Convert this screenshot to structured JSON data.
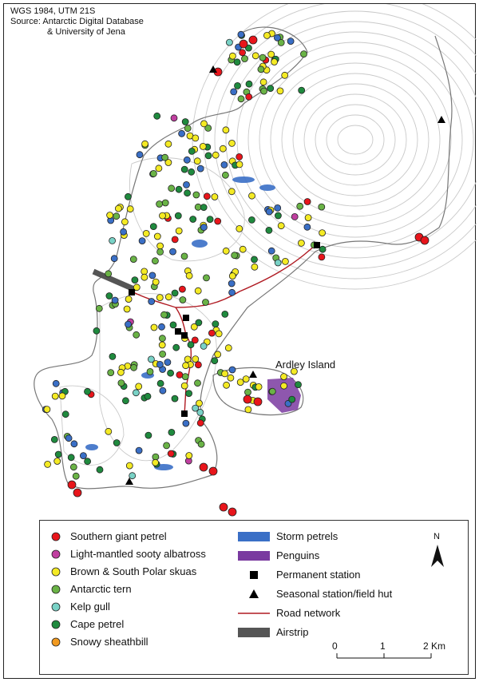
{
  "credits": {
    "line1": "WGS 1984, UTM 21S",
    "line2": "Source: Antarctic Digital Database",
    "line3": "& University of Jena"
  },
  "labels": {
    "island": "Ardley Island"
  },
  "legend": {
    "left": [
      {
        "label": "Southern giant petrel",
        "color": "#e8151b"
      },
      {
        "label": "Light-mantled sooty albatross",
        "color": "#c03fa0"
      },
      {
        "label": "Brown & South Polar skuas",
        "color": "#f4ea24"
      },
      {
        "label": "Antarctic tern",
        "color": "#6ab346"
      },
      {
        "label": "Kelp gull",
        "color": "#79d2c6"
      },
      {
        "label": "Cape petrel",
        "color": "#1f8a3e"
      },
      {
        "label": "Snowy sheathbill",
        "color": "#f29a20"
      }
    ],
    "right": [
      {
        "label": "Storm petrels",
        "color": "#3a6fc6",
        "symbol": "rect"
      },
      {
        "label": "Penguins",
        "color": "#7a3aa0",
        "symbol": "rect"
      },
      {
        "label": "Permanent station",
        "color": "#000000",
        "symbol": "square"
      },
      {
        "label": "Seasonal station/field hut",
        "color": "#000000",
        "symbol": "triangle"
      },
      {
        "label": "Road network",
        "color": "#b01a22",
        "symbol": "line"
      },
      {
        "label": "Airstrip",
        "color": "#555555",
        "symbol": "rect"
      }
    ]
  },
  "scale": {
    "ticks": [
      "0",
      "1",
      "2 Km"
    ]
  },
  "north": {
    "label": "N"
  },
  "colors": {
    "coast": "#777777",
    "contour": "#c9c9c9",
    "dot_stroke": "#222222"
  }
}
